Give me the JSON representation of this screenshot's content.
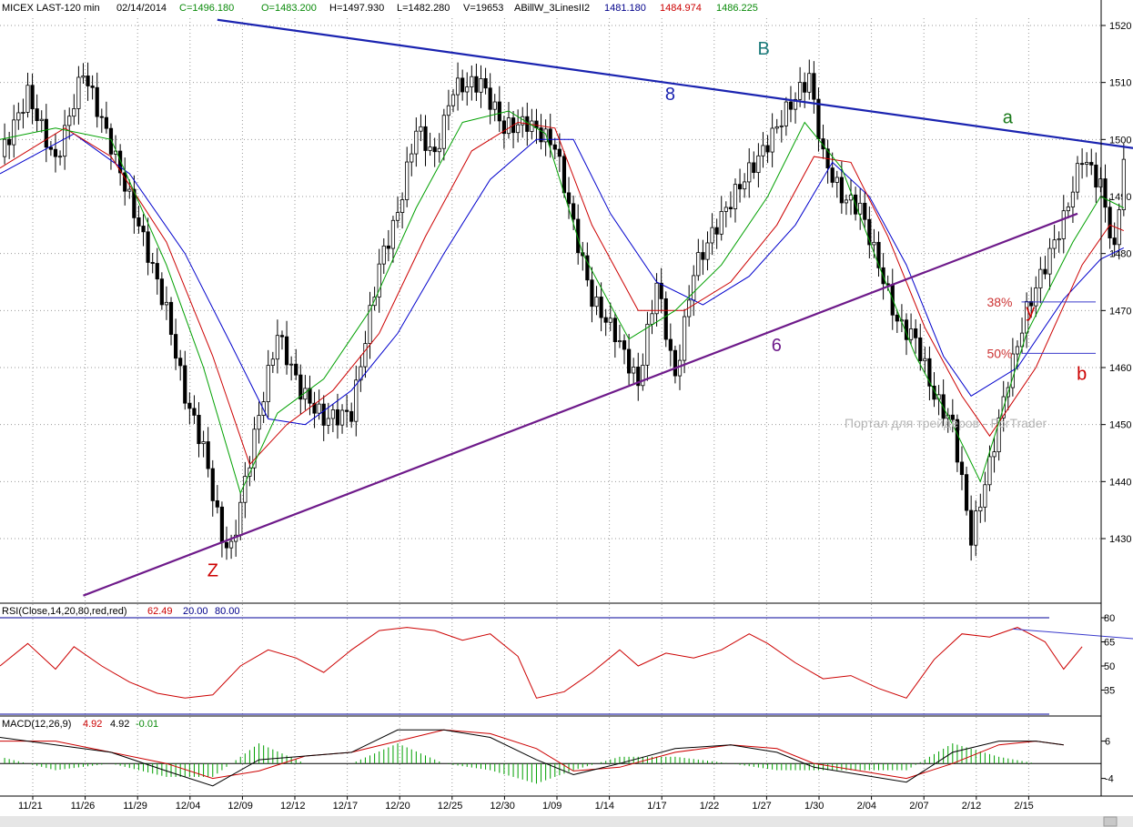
{
  "header": {
    "symbol": "MICEX LAST-120 min",
    "date": "02/14/2014",
    "close": "C=1496.180",
    "open": "O=1483.200",
    "high": "H=1497.930",
    "low": "L=1482.280",
    "volume": "V=19653",
    "indicator": "ABillW_3LinesII2",
    "line1": "1481.180",
    "line2": "1484.974",
    "line3": "1486.225"
  },
  "colors": {
    "candles": "#000000",
    "green_line": "#00a000",
    "red_line": "#cc0000",
    "blue_line": "#0000cc",
    "resistance": "#1a23b0",
    "support": "#6e1a8a",
    "grid": "#9a9a9a",
    "rsi": "#cc0000",
    "rsi_bands": "#00009a",
    "macd": "#000000",
    "macd_signal": "#cc0000",
    "macd_hist": "#00a000"
  },
  "watermark": "Портал для трейдеров - ForTrader",
  "rsi": {
    "label": "RSI(Close,14,20,80,red,red)",
    "value": "62.49",
    "low_band": "20.00",
    "high_band": "80.00",
    "ticks": [
      "80",
      "65",
      "50",
      "35"
    ]
  },
  "macd": {
    "label": "MACD(12,26,9)",
    "value1": "4.92",
    "value2": "4.92",
    "hist": "-0.01",
    "ticks": [
      "6",
      "-4"
    ]
  },
  "chart_data": {
    "type": "candlestick",
    "title": "MICEX LAST-120 min",
    "price_ylim": [
      1422,
      1523
    ],
    "price_ticks": [
      1430,
      1440,
      1450,
      1460,
      1470,
      1480,
      1490,
      1500,
      1510,
      1520
    ],
    "x_tick_labels": [
      "11/21",
      "11/26",
      "11/29",
      "12/04",
      "12/09",
      "12/12",
      "12/17",
      "12/20",
      "12/25",
      "12/30",
      "1/09",
      "1/14",
      "1/17",
      "1/22",
      "1/27",
      "1/30",
      "2/04",
      "2/07",
      "2/12",
      "2/15"
    ],
    "price_path": [
      {
        "x": 0,
        "y": 1497
      },
      {
        "x": 6,
        "y": 1508
      },
      {
        "x": 12,
        "y": 1496
      },
      {
        "x": 18,
        "y": 1512
      },
      {
        "x": 24,
        "y": 1499
      },
      {
        "x": 30,
        "y": 1485
      },
      {
        "x": 36,
        "y": 1470
      },
      {
        "x": 40,
        "y": 1455
      },
      {
        "x": 44,
        "y": 1446
      },
      {
        "x": 48,
        "y": 1430
      },
      {
        "x": 50,
        "y": 1428
      },
      {
        "x": 55,
        "y": 1448
      },
      {
        "x": 60,
        "y": 1466
      },
      {
        "x": 65,
        "y": 1456
      },
      {
        "x": 70,
        "y": 1451
      },
      {
        "x": 76,
        "y": 1452
      },
      {
        "x": 82,
        "y": 1478
      },
      {
        "x": 86,
        "y": 1487
      },
      {
        "x": 90,
        "y": 1502
      },
      {
        "x": 94,
        "y": 1497
      },
      {
        "x": 98,
        "y": 1509
      },
      {
        "x": 104,
        "y": 1510
      },
      {
        "x": 109,
        "y": 1502
      },
      {
        "x": 114,
        "y": 1503
      },
      {
        "x": 120,
        "y": 1499
      },
      {
        "x": 124,
        "y": 1485
      },
      {
        "x": 128,
        "y": 1472
      },
      {
        "x": 133,
        "y": 1466
      },
      {
        "x": 138,
        "y": 1457
      },
      {
        "x": 142,
        "y": 1475
      },
      {
        "x": 146,
        "y": 1458
      },
      {
        "x": 150,
        "y": 1477
      },
      {
        "x": 155,
        "y": 1485
      },
      {
        "x": 160,
        "y": 1492
      },
      {
        "x": 165,
        "y": 1498
      },
      {
        "x": 170,
        "y": 1505
      },
      {
        "x": 175,
        "y": 1511
      },
      {
        "x": 178,
        "y": 1497
      },
      {
        "x": 182,
        "y": 1490
      },
      {
        "x": 186,
        "y": 1488
      },
      {
        "x": 190,
        "y": 1478
      },
      {
        "x": 194,
        "y": 1468
      },
      {
        "x": 198,
        "y": 1465
      },
      {
        "x": 202,
        "y": 1455
      },
      {
        "x": 206,
        "y": 1450
      },
      {
        "x": 210,
        "y": 1430
      },
      {
        "x": 214,
        "y": 1443
      },
      {
        "x": 218,
        "y": 1458
      },
      {
        "x": 222,
        "y": 1470
      },
      {
        "x": 226,
        "y": 1478
      },
      {
        "x": 230,
        "y": 1486
      },
      {
        "x": 234,
        "y": 1497
      },
      {
        "x": 238,
        "y": 1492
      },
      {
        "x": 241,
        "y": 1480
      },
      {
        "x": 243,
        "y": 1497
      }
    ],
    "green_line_path": [
      {
        "x": 0,
        "y": 1500
      },
      {
        "x": 12,
        "y": 1502
      },
      {
        "x": 24,
        "y": 1500
      },
      {
        "x": 36,
        "y": 1478
      },
      {
        "x": 44,
        "y": 1460
      },
      {
        "x": 52,
        "y": 1438
      },
      {
        "x": 60,
        "y": 1452
      },
      {
        "x": 70,
        "y": 1458
      },
      {
        "x": 80,
        "y": 1470
      },
      {
        "x": 90,
        "y": 1488
      },
      {
        "x": 100,
        "y": 1503
      },
      {
        "x": 110,
        "y": 1505
      },
      {
        "x": 118,
        "y": 1501
      },
      {
        "x": 126,
        "y": 1480
      },
      {
        "x": 136,
        "y": 1465
      },
      {
        "x": 146,
        "y": 1470
      },
      {
        "x": 156,
        "y": 1478
      },
      {
        "x": 166,
        "y": 1490
      },
      {
        "x": 174,
        "y": 1503
      },
      {
        "x": 182,
        "y": 1495
      },
      {
        "x": 190,
        "y": 1478
      },
      {
        "x": 198,
        "y": 1462
      },
      {
        "x": 206,
        "y": 1450
      },
      {
        "x": 212,
        "y": 1440
      },
      {
        "x": 222,
        "y": 1466
      },
      {
        "x": 232,
        "y": 1482
      },
      {
        "x": 238,
        "y": 1490
      },
      {
        "x": 243,
        "y": 1488
      }
    ],
    "red_line_path": [
      {
        "x": 0,
        "y": 1495
      },
      {
        "x": 14,
        "y": 1502
      },
      {
        "x": 24,
        "y": 1497
      },
      {
        "x": 36,
        "y": 1482
      },
      {
        "x": 46,
        "y": 1462
      },
      {
        "x": 54,
        "y": 1443
      },
      {
        "x": 62,
        "y": 1450
      },
      {
        "x": 72,
        "y": 1456
      },
      {
        "x": 82,
        "y": 1466
      },
      {
        "x": 92,
        "y": 1483
      },
      {
        "x": 102,
        "y": 1498
      },
      {
        "x": 112,
        "y": 1503
      },
      {
        "x": 120,
        "y": 1502
      },
      {
        "x": 128,
        "y": 1485
      },
      {
        "x": 138,
        "y": 1470
      },
      {
        "x": 148,
        "y": 1470
      },
      {
        "x": 158,
        "y": 1475
      },
      {
        "x": 168,
        "y": 1485
      },
      {
        "x": 176,
        "y": 1497
      },
      {
        "x": 184,
        "y": 1496
      },
      {
        "x": 192,
        "y": 1483
      },
      {
        "x": 200,
        "y": 1467
      },
      {
        "x": 208,
        "y": 1455
      },
      {
        "x": 214,
        "y": 1448
      },
      {
        "x": 224,
        "y": 1460
      },
      {
        "x": 234,
        "y": 1478
      },
      {
        "x": 240,
        "y": 1485
      },
      {
        "x": 243,
        "y": 1484
      }
    ],
    "blue_line_path": [
      {
        "x": 0,
        "y": 1494
      },
      {
        "x": 16,
        "y": 1501
      },
      {
        "x": 28,
        "y": 1494
      },
      {
        "x": 40,
        "y": 1480
      },
      {
        "x": 50,
        "y": 1464
      },
      {
        "x": 58,
        "y": 1451
      },
      {
        "x": 66,
        "y": 1450
      },
      {
        "x": 76,
        "y": 1456
      },
      {
        "x": 86,
        "y": 1466
      },
      {
        "x": 96,
        "y": 1480
      },
      {
        "x": 106,
        "y": 1493
      },
      {
        "x": 116,
        "y": 1500
      },
      {
        "x": 124,
        "y": 1500
      },
      {
        "x": 132,
        "y": 1487
      },
      {
        "x": 142,
        "y": 1475
      },
      {
        "x": 152,
        "y": 1471
      },
      {
        "x": 162,
        "y": 1476
      },
      {
        "x": 172,
        "y": 1485
      },
      {
        "x": 180,
        "y": 1496
      },
      {
        "x": 188,
        "y": 1490
      },
      {
        "x": 196,
        "y": 1478
      },
      {
        "x": 204,
        "y": 1462
      },
      {
        "x": 210,
        "y": 1455
      },
      {
        "x": 220,
        "y": 1460
      },
      {
        "x": 230,
        "y": 1472
      },
      {
        "x": 238,
        "y": 1479
      },
      {
        "x": 243,
        "y": 1481
      }
    ],
    "trendlines": [
      {
        "name": "8",
        "color": "resistance",
        "x1": 47,
        "y1": 1521,
        "x2": 245,
        "y2": 1498.5
      },
      {
        "name": "6",
        "color": "support",
        "x1": 18,
        "y1": 1420,
        "x2": 233,
        "y2": 1487
      }
    ],
    "fib_levels": [
      {
        "label": "38%",
        "value": 1471.5,
        "x1": 214,
        "x2": 233
      },
      {
        "label": "50%",
        "value": 1462.5,
        "x1": 214,
        "x2": 233
      }
    ],
    "wave_labels": [
      {
        "text": "Z",
        "color": "#cc0000",
        "x": 46,
        "y": 1424.5
      },
      {
        "text": "B",
        "color": "#1a7a7a",
        "x": 165,
        "y": 1516
      },
      {
        "text": "8",
        "color": "#1a23b0",
        "x": 145,
        "y": 1508
      },
      {
        "text": "a",
        "color": "#1a7a1a",
        "x": 218,
        "y": 1504
      },
      {
        "text": "6",
        "color": "#6e1a8a",
        "x": 168,
        "y": 1464
      },
      {
        "text": "y",
        "color": "#cc0000",
        "x": 223,
        "y": 1470
      },
      {
        "text": "b",
        "color": "#cc0000",
        "x": 234,
        "y": 1459
      }
    ],
    "rsi_ylim": [
      20,
      80
    ],
    "rsi_path": [
      {
        "x": 0,
        "y": 50
      },
      {
        "x": 6,
        "y": 64
      },
      {
        "x": 12,
        "y": 48
      },
      {
        "x": 16,
        "y": 62
      },
      {
        "x": 22,
        "y": 50
      },
      {
        "x": 28,
        "y": 40
      },
      {
        "x": 34,
        "y": 33
      },
      {
        "x": 40,
        "y": 30
      },
      {
        "x": 46,
        "y": 32
      },
      {
        "x": 52,
        "y": 50
      },
      {
        "x": 58,
        "y": 60
      },
      {
        "x": 64,
        "y": 55
      },
      {
        "x": 70,
        "y": 46
      },
      {
        "x": 76,
        "y": 60
      },
      {
        "x": 82,
        "y": 72
      },
      {
        "x": 88,
        "y": 74
      },
      {
        "x": 94,
        "y": 72
      },
      {
        "x": 100,
        "y": 66
      },
      {
        "x": 106,
        "y": 70
      },
      {
        "x": 112,
        "y": 56
      },
      {
        "x": 116,
        "y": 30
      },
      {
        "x": 122,
        "y": 34
      },
      {
        "x": 128,
        "y": 46
      },
      {
        "x": 134,
        "y": 60
      },
      {
        "x": 138,
        "y": 50
      },
      {
        "x": 144,
        "y": 58
      },
      {
        "x": 150,
        "y": 55
      },
      {
        "x": 156,
        "y": 60
      },
      {
        "x": 162,
        "y": 70
      },
      {
        "x": 166,
        "y": 64
      },
      {
        "x": 172,
        "y": 52
      },
      {
        "x": 178,
        "y": 42
      },
      {
        "x": 184,
        "y": 44
      },
      {
        "x": 190,
        "y": 36
      },
      {
        "x": 196,
        "y": 30
      },
      {
        "x": 202,
        "y": 54
      },
      {
        "x": 208,
        "y": 70
      },
      {
        "x": 214,
        "y": 68
      },
      {
        "x": 220,
        "y": 74
      },
      {
        "x": 226,
        "y": 65
      },
      {
        "x": 230,
        "y": 48
      },
      {
        "x": 234,
        "y": 62
      }
    ],
    "rsi_trendline": {
      "x1": 219,
      "y1": 73,
      "x2": 245,
      "y2": 67
    },
    "macd_ylim": [
      -8,
      12
    ],
    "macd_path": [
      {
        "x": 0,
        "y": 7
      },
      {
        "x": 12,
        "y": 5
      },
      {
        "x": 24,
        "y": 3
      },
      {
        "x": 36,
        "y": -2
      },
      {
        "x": 46,
        "y": -6
      },
      {
        "x": 56,
        "y": 1
      },
      {
        "x": 66,
        "y": 2
      },
      {
        "x": 76,
        "y": 3
      },
      {
        "x": 86,
        "y": 9
      },
      {
        "x": 96,
        "y": 9
      },
      {
        "x": 106,
        "y": 7
      },
      {
        "x": 116,
        "y": 1
      },
      {
        "x": 124,
        "y": -3
      },
      {
        "x": 134,
        "y": 0
      },
      {
        "x": 146,
        "y": 4
      },
      {
        "x": 158,
        "y": 5
      },
      {
        "x": 168,
        "y": 3
      },
      {
        "x": 176,
        "y": -1
      },
      {
        "x": 186,
        "y": -3
      },
      {
        "x": 196,
        "y": -5
      },
      {
        "x": 206,
        "y": 3
      },
      {
        "x": 216,
        "y": 6
      },
      {
        "x": 224,
        "y": 6
      },
      {
        "x": 230,
        "y": 5
      }
    ],
    "macd_signal_path": [
      {
        "x": 0,
        "y": 6
      },
      {
        "x": 12,
        "y": 6
      },
      {
        "x": 24,
        "y": 3
      },
      {
        "x": 36,
        "y": 0
      },
      {
        "x": 46,
        "y": -4
      },
      {
        "x": 56,
        "y": -2
      },
      {
        "x": 66,
        "y": 2
      },
      {
        "x": 76,
        "y": 3
      },
      {
        "x": 86,
        "y": 6
      },
      {
        "x": 96,
        "y": 9
      },
      {
        "x": 106,
        "y": 8
      },
      {
        "x": 116,
        "y": 4
      },
      {
        "x": 124,
        "y": -2
      },
      {
        "x": 134,
        "y": -1
      },
      {
        "x": 146,
        "y": 3
      },
      {
        "x": 158,
        "y": 5
      },
      {
        "x": 168,
        "y": 4
      },
      {
        "x": 176,
        "y": 0
      },
      {
        "x": 186,
        "y": -2
      },
      {
        "x": 196,
        "y": -4
      },
      {
        "x": 206,
        "y": 0
      },
      {
        "x": 216,
        "y": 5
      },
      {
        "x": 224,
        "y": 6
      },
      {
        "x": 230,
        "y": 5
      }
    ]
  }
}
